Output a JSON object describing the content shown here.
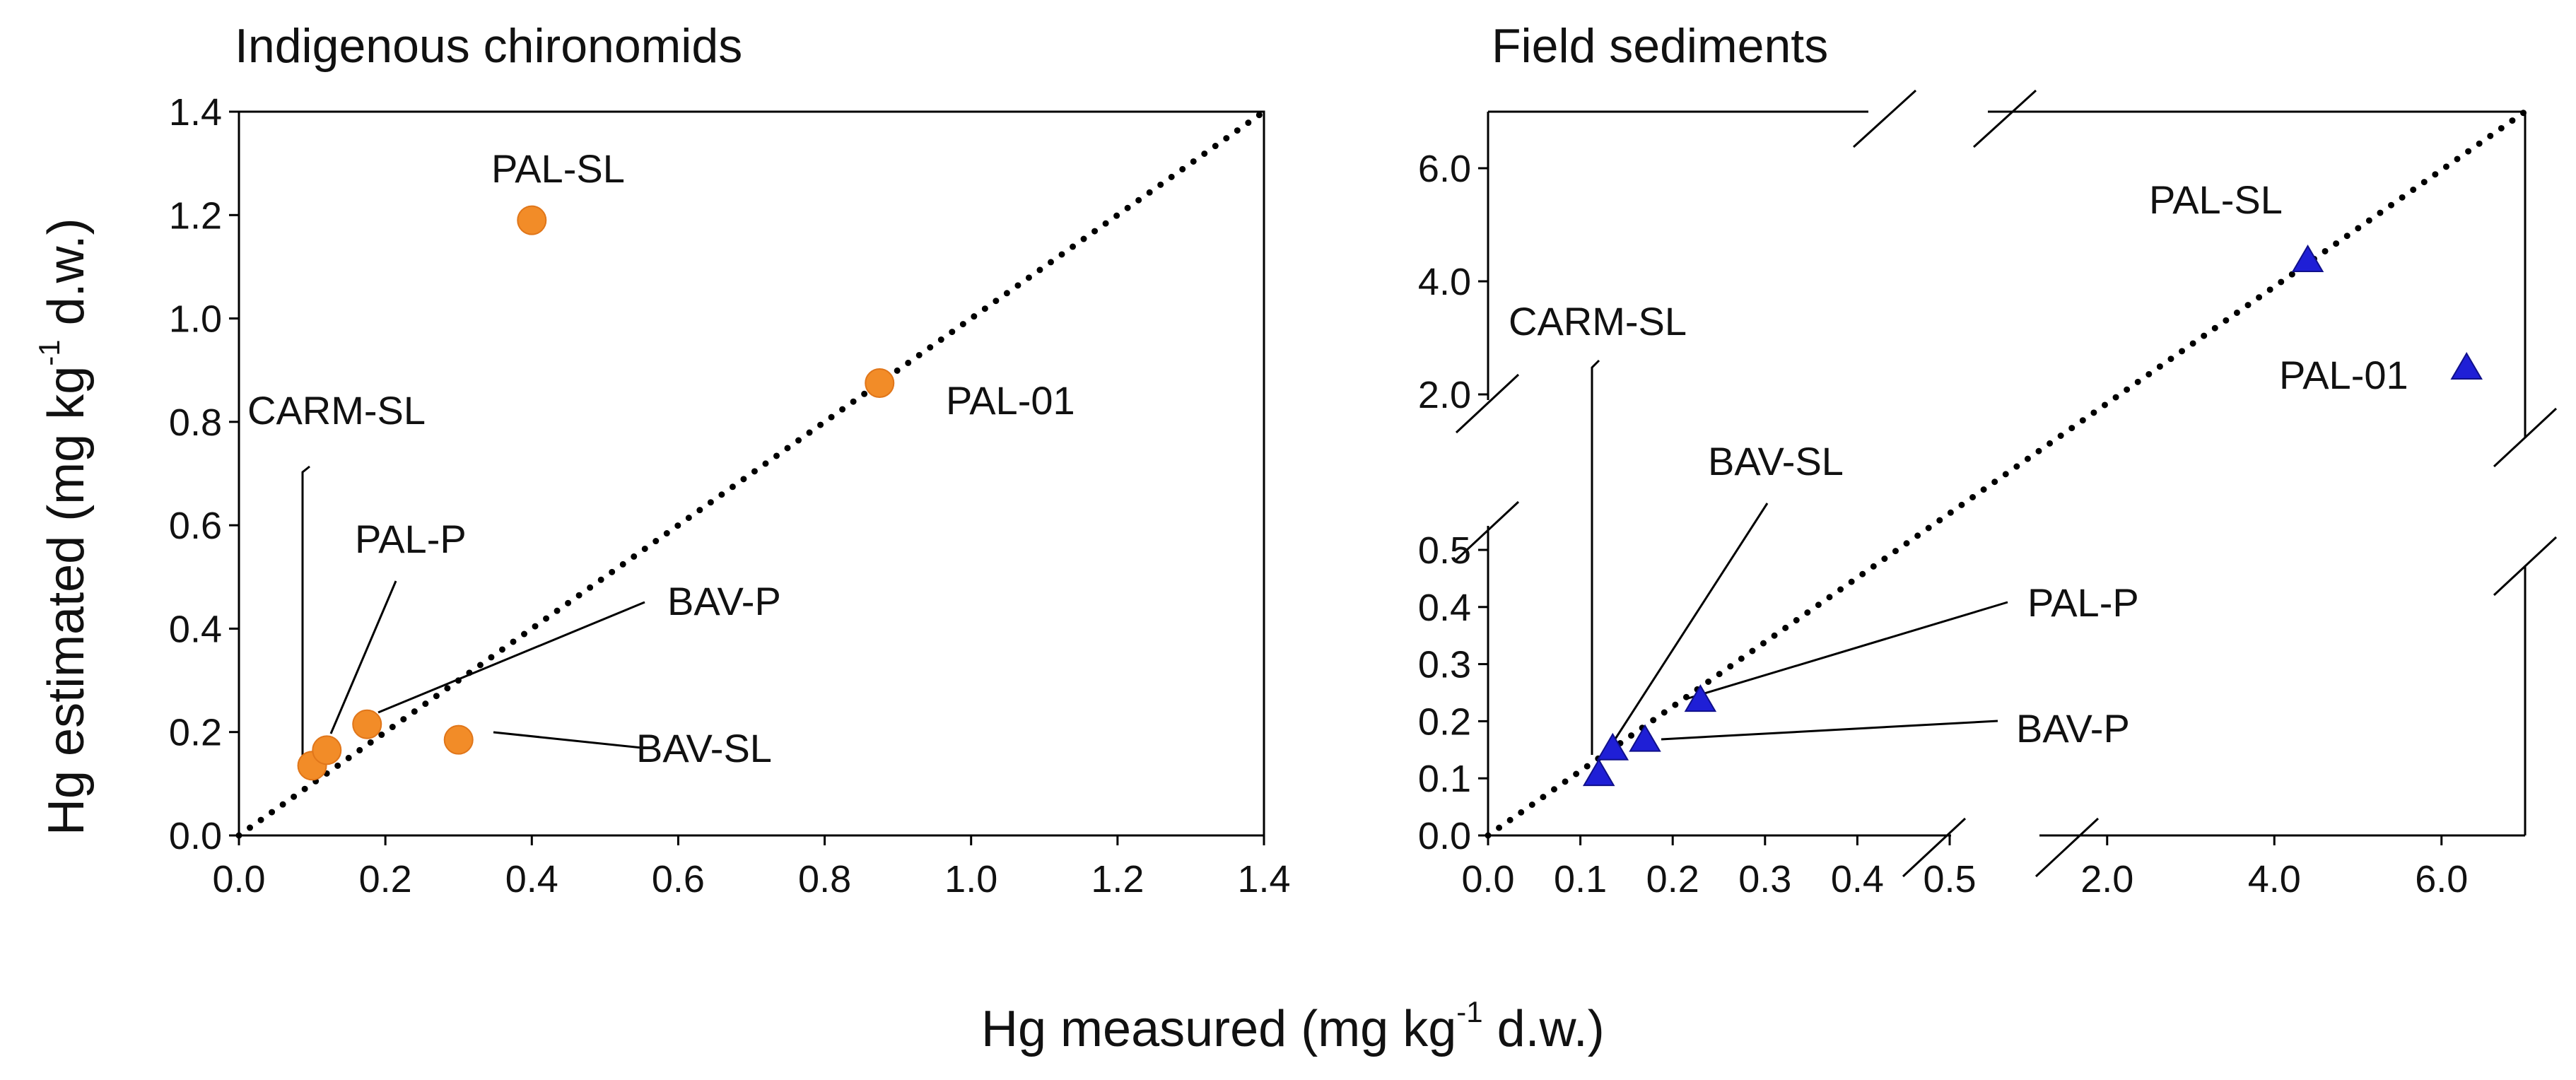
{
  "figure": {
    "x_axis_title": {
      "prefix": "Hg measured (mg kg",
      "sup": "-1",
      "suffix": " d.w.)"
    },
    "y_axis_title": {
      "prefix": "Hg estimated (mg kg",
      "sup": "-1",
      "suffix": " d.w.)"
    }
  },
  "chart_data": [
    {
      "type": "scatter",
      "title": "Indigenous chironomids",
      "xlim": [
        0,
        1.4
      ],
      "ylim": [
        0,
        1.4
      ],
      "x_ticks": [
        "0.0",
        "0.2",
        "0.4",
        "0.6",
        "0.8",
        "1.0",
        "1.2",
        "1.4"
      ],
      "y_ticks": [
        "0.0",
        "0.2",
        "0.4",
        "0.6",
        "0.8",
        "1.0",
        "1.2",
        "1.4"
      ],
      "reference_line": "1:1 dotted",
      "marker": "circle",
      "color": "#F28C28",
      "points": [
        {
          "label": "PAL-SL",
          "x": 0.4,
          "y": 1.19
        },
        {
          "label": "PAL-01",
          "x": 0.875,
          "y": 0.875
        },
        {
          "label": "CARM-SL",
          "x": 0.1,
          "y": 0.135
        },
        {
          "label": "PAL-P",
          "x": 0.12,
          "y": 0.165
        },
        {
          "label": "BAV-P",
          "x": 0.175,
          "y": 0.215
        },
        {
          "label": "BAV-SL",
          "x": 0.3,
          "y": 0.185
        }
      ]
    },
    {
      "type": "scatter",
      "title": "Field sediments",
      "axis_breaks": {
        "x": [
          0.5,
          2.0
        ],
        "y": [
          0.5,
          2.0
        ]
      },
      "x_ticks": [
        "0.0",
        "0.1",
        "0.2",
        "0.3",
        "0.4",
        "0.5",
        "2.0",
        "4.0",
        "6.0"
      ],
      "y_ticks": [
        "0.0",
        "0.1",
        "0.2",
        "0.3",
        "0.4",
        "0.5",
        "2.0",
        "4.0",
        "6.0"
      ],
      "reference_line": "1:1 dotted",
      "marker": "triangle",
      "color": "#1F1FD6",
      "points": [
        {
          "label": "PAL-SL",
          "x": 4.4,
          "y": 4.4
        },
        {
          "label": "PAL-01",
          "x": 6.3,
          "y": 2.5
        },
        {
          "label": "CARM-SL",
          "x": 0.12,
          "y": 0.11
        },
        {
          "label": "BAV-SL",
          "x": 0.135,
          "y": 0.155
        },
        {
          "label": "BAV-P",
          "x": 0.17,
          "y": 0.17
        },
        {
          "label": "PAL-P",
          "x": 0.23,
          "y": 0.24
        }
      ]
    }
  ]
}
